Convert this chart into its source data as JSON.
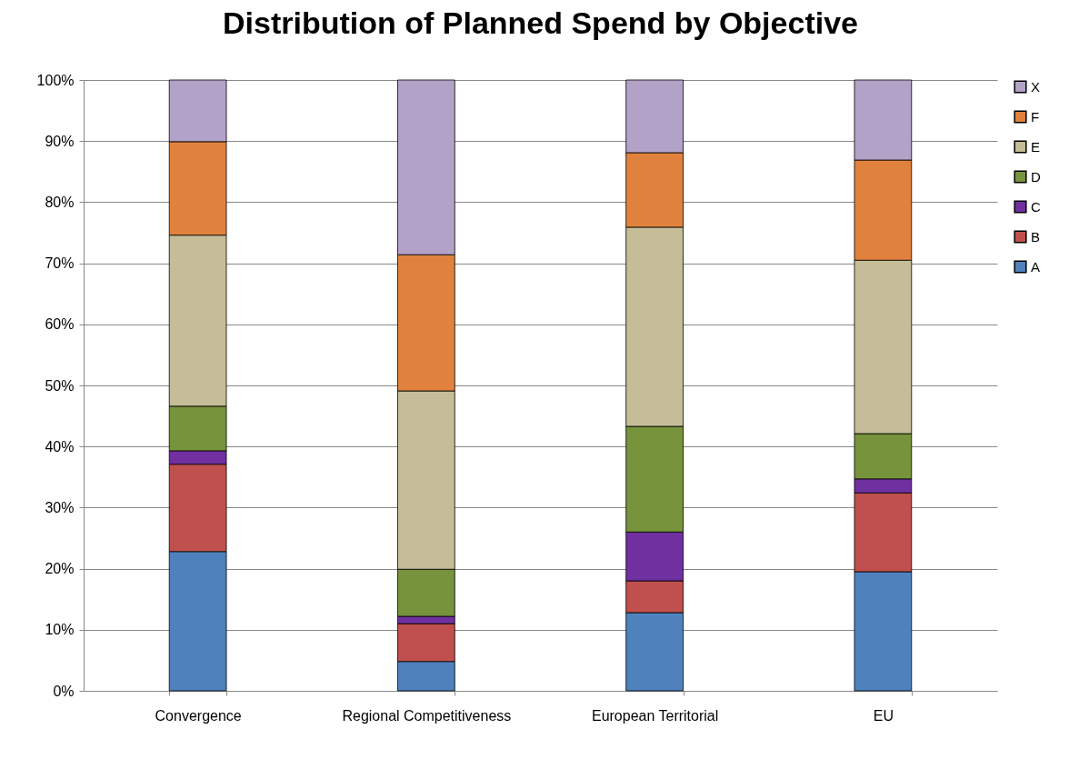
{
  "chart_data": {
    "type": "bar",
    "title": "Distribution of Planned Spend by Objective",
    "stacked": true,
    "categories": [
      "Convergence",
      "Regional Competitiveness",
      "European Territorial",
      "EU"
    ],
    "series": [
      {
        "name": "A",
        "color": "#4f81bd",
        "values": [
          22.8,
          4.8,
          12.8,
          19.5
        ]
      },
      {
        "name": "B",
        "color": "#c0504d",
        "values": [
          14.3,
          6.2,
          5.2,
          12.9
        ]
      },
      {
        "name": "C",
        "color": "#7030a0",
        "values": [
          2.2,
          1.2,
          8.0,
          2.3
        ]
      },
      {
        "name": "D",
        "color": "#77933c",
        "values": [
          7.3,
          7.7,
          17.3,
          7.4
        ]
      },
      {
        "name": "E",
        "color": "#c4bd97",
        "values": [
          28.0,
          29.2,
          32.6,
          28.4
        ]
      },
      {
        "name": "F",
        "color": "#e0823d",
        "values": [
          15.3,
          22.3,
          12.2,
          16.4
        ]
      },
      {
        "name": "X",
        "color": "#b3a2c7",
        "values": [
          10.1,
          28.6,
          11.9,
          13.1
        ]
      }
    ],
    "ylim": [
      0,
      100
    ],
    "yticks": [
      {
        "value": 0,
        "label": "0%"
      },
      {
        "value": 10,
        "label": "10%"
      },
      {
        "value": 20,
        "label": "20%"
      },
      {
        "value": 30,
        "label": "30%"
      },
      {
        "value": 40,
        "label": "40%"
      },
      {
        "value": 50,
        "label": "50%"
      },
      {
        "value": 60,
        "label": "60%"
      },
      {
        "value": 70,
        "label": "70%"
      },
      {
        "value": 80,
        "label": "80%"
      },
      {
        "value": 90,
        "label": "90%"
      },
      {
        "value": 100,
        "label": "100%"
      }
    ],
    "grid": "y",
    "legend": "right"
  }
}
